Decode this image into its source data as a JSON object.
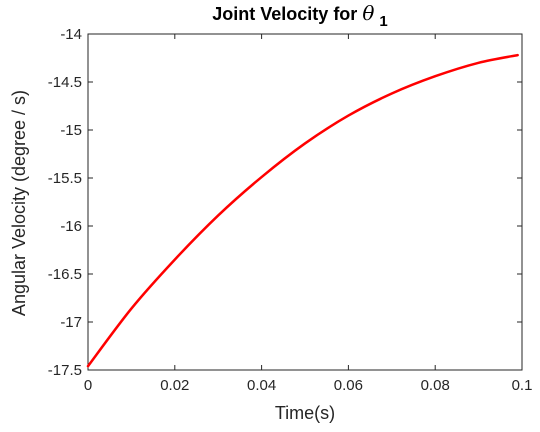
{
  "chart_data": {
    "type": "line",
    "title_text": "Joint Velocity for ",
    "title_symbol": "θ",
    "title_subscript": "1",
    "xlabel": "Time(s)",
    "ylabel": "Angular Velocity (degree / s)",
    "xlim": [
      0,
      0.1
    ],
    "ylim": [
      -17.5,
      -14
    ],
    "xticks": [
      "0",
      "0.02",
      "0.04",
      "0.06",
      "0.08",
      "0.1"
    ],
    "yticks": [
      "-14",
      "-14.5",
      "-15",
      "-15.5",
      "-16",
      "-16.5",
      "-17",
      "-17.5"
    ],
    "grid": false,
    "series": [
      {
        "color": "#ff0000",
        "x": [
          0,
          0.01,
          0.02,
          0.03,
          0.04,
          0.05,
          0.06,
          0.07,
          0.08,
          0.09,
          0.099
        ],
        "y": [
          -17.46,
          -16.86,
          -16.35,
          -15.89,
          -15.49,
          -15.14,
          -14.85,
          -14.62,
          -14.44,
          -14.3,
          -14.22
        ]
      }
    ]
  }
}
